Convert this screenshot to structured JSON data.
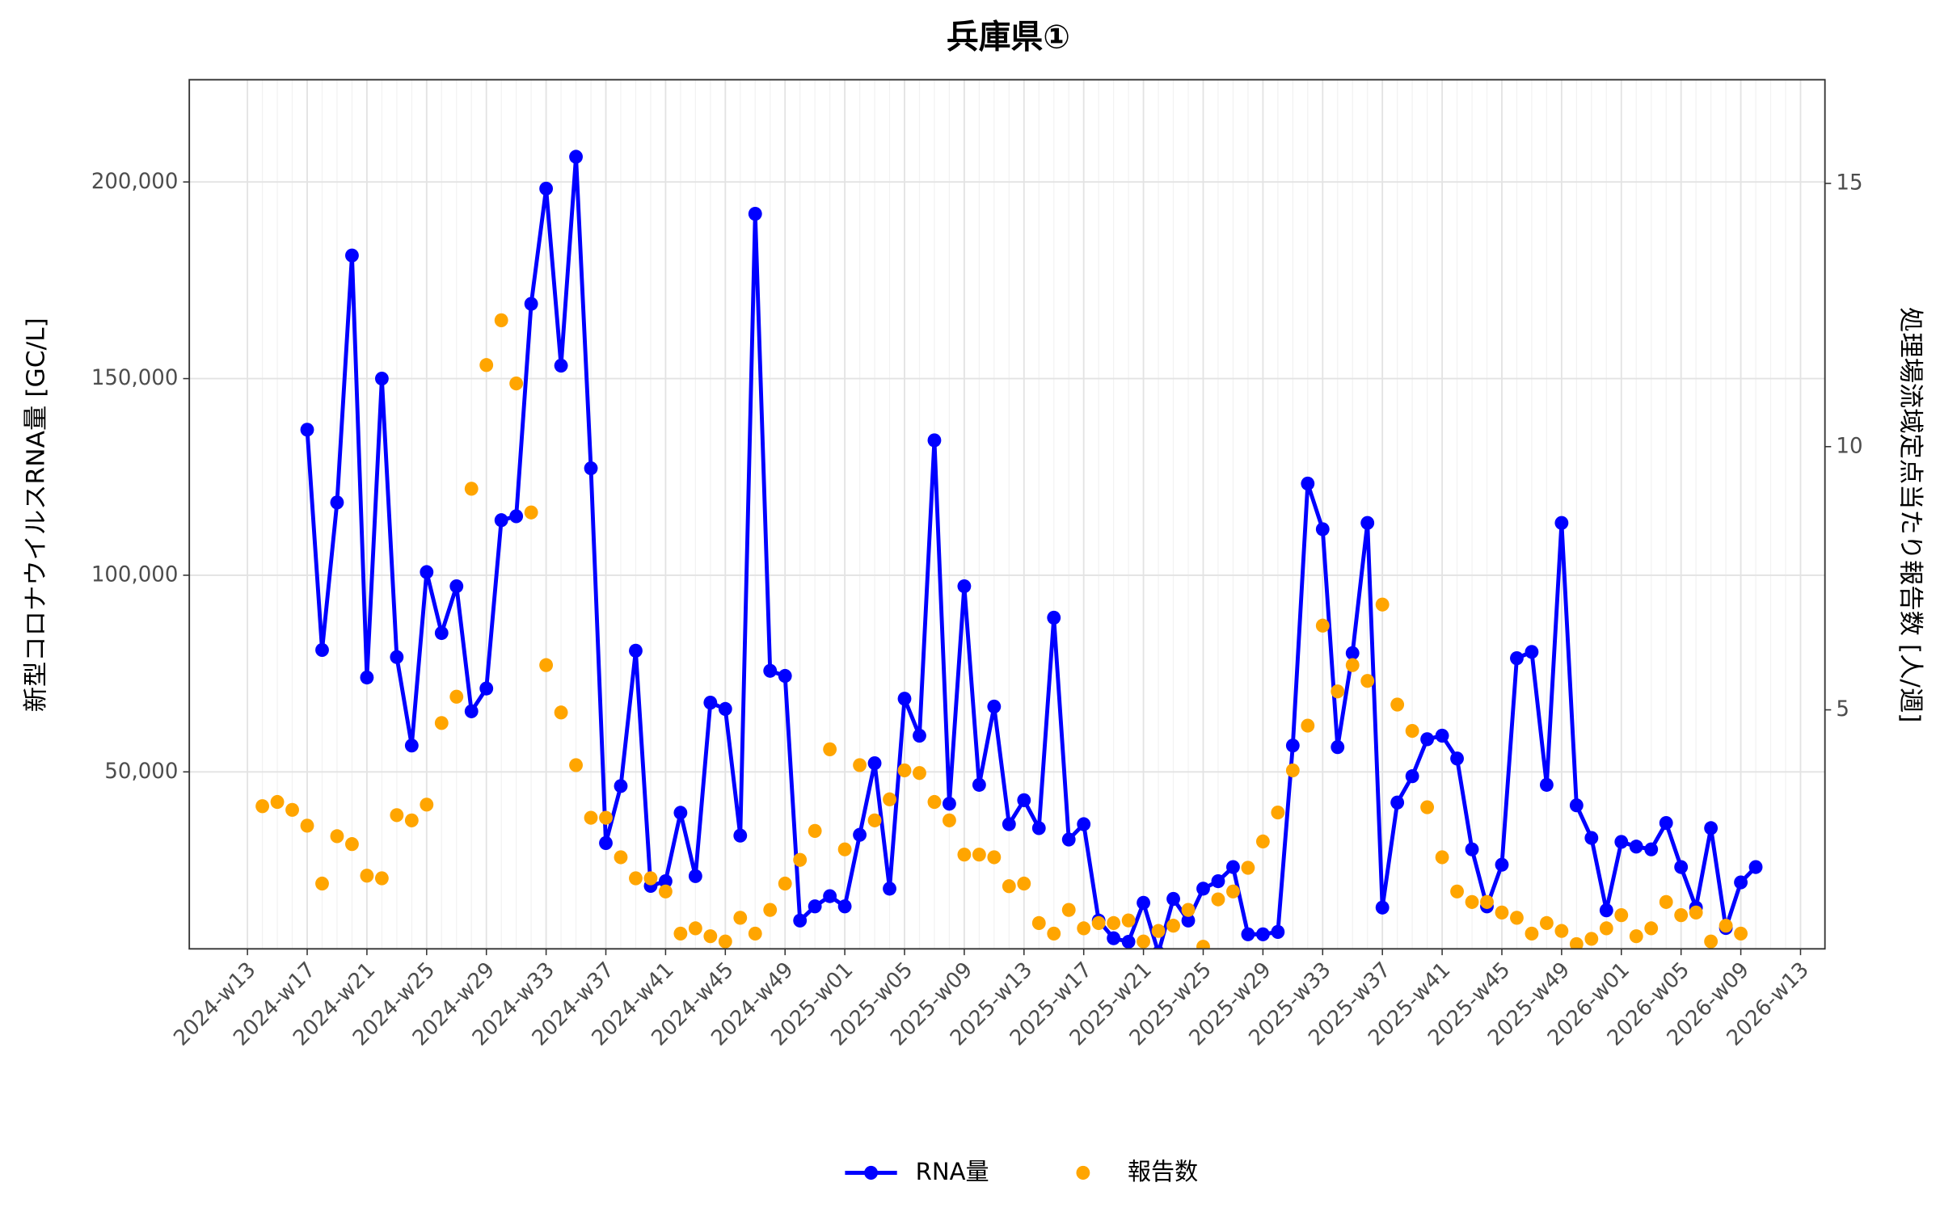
{
  "chart_data": {
    "type": "line",
    "title": "兵庫県①",
    "y_label": "新型コロナウイルスRNA量 [GC/L]",
    "y2_label": "処理場流域定点当たり報告数 [人/週]",
    "categories": [
      "2024-w13",
      null,
      null,
      null,
      "2024-w17",
      null,
      null,
      null,
      "2024-w21",
      null,
      null,
      null,
      "2024-w25",
      null,
      null,
      null,
      "2024-w29",
      null,
      null,
      null,
      "2024-w33",
      null,
      null,
      null,
      "2024-w37",
      null,
      null,
      null,
      "2024-w41",
      null,
      null,
      null,
      "2024-w45",
      null,
      null,
      null,
      "2024-w49",
      null,
      null,
      null,
      "2025-w01",
      null,
      null,
      null,
      "2025-w05",
      null,
      null,
      null,
      "2025-w09",
      null,
      null,
      null,
      "2025-w13",
      null,
      null,
      null,
      "2025-w17",
      null,
      null,
      null,
      "2025-w21",
      null,
      null,
      null,
      "2025-w25",
      null,
      null,
      null,
      "2025-w29",
      null,
      null,
      null,
      "2025-w33",
      null,
      null,
      null,
      "2025-w37",
      null,
      null,
      null,
      "2025-w41",
      null,
      null,
      null,
      "2025-w45",
      null,
      null,
      null,
      "2025-w49",
      null,
      null,
      null,
      "2026-w01",
      null,
      null,
      null,
      "2026-w05",
      null,
      null,
      null,
      "2026-w09",
      null,
      null,
      null,
      "2026-w13"
    ],
    "series": [
      {
        "name": "RNA量",
        "color": "#0000ff",
        "style": "line-points",
        "values": [
          null,
          null,
          null,
          null,
          137000,
          81000,
          118500,
          181300,
          74000,
          150000,
          79200,
          56700,
          100800,
          85300,
          97200,
          65400,
          71200,
          114000,
          115000,
          169000,
          198300,
          153300,
          206400,
          127200,
          31900,
          46400,
          80800,
          21000,
          22200,
          39600,
          23500,
          67600,
          66000,
          33800,
          191900,
          75700,
          74400,
          12200,
          15800,
          18400,
          15800,
          34000,
          52200,
          20300,
          68600,
          59200,
          134300,
          41900,
          97200,
          46700,
          66600,
          36700,
          42800,
          35700,
          89200,
          32800,
          36700,
          12200,
          7700,
          6800,
          16700,
          4000,
          17700,
          12200,
          20300,
          22200,
          25800,
          8700,
          8700,
          9300,
          56700,
          123300,
          111700,
          56300,
          80200,
          113300,
          15500,
          42200,
          48900,
          58300,
          59200,
          53400,
          30300,
          15800,
          26400,
          78900,
          80500,
          46700,
          113300,
          41500,
          33200,
          14800,
          32200,
          31000,
          30300,
          37000,
          25800,
          15500,
          35700,
          10300,
          21900,
          25800,
          null,
          null,
          null
        ]
      },
      {
        "name": "報告数",
        "color": "#ffa500",
        "style": "points",
        "axis": "y2",
        "values": [
          null,
          3.17,
          3.25,
          3.1,
          2.8,
          1.7,
          2.6,
          2.45,
          1.85,
          1.8,
          3.0,
          2.9,
          3.2,
          4.75,
          5.25,
          9.2,
          11.55,
          12.4,
          11.2,
          8.75,
          5.85,
          4.95,
          3.95,
          2.95,
          2.95,
          2.2,
          1.8,
          1.8,
          1.55,
          0.75,
          0.85,
          0.7,
          0.6,
          1.05,
          0.75,
          1.2,
          1.7,
          2.15,
          2.7,
          4.25,
          2.35,
          3.95,
          2.9,
          3.3,
          3.85,
          3.8,
          3.25,
          2.9,
          2.25,
          2.25,
          2.2,
          1.65,
          1.7,
          0.95,
          0.75,
          1.2,
          0.85,
          0.95,
          0.95,
          1.0,
          0.6,
          0.8,
          0.9,
          1.2,
          0.5,
          1.4,
          1.55,
          2.0,
          2.5,
          3.05,
          3.85,
          4.7,
          6.6,
          5.35,
          5.85,
          5.55,
          7.0,
          5.1,
          4.6,
          3.15,
          2.2,
          1.55,
          1.35,
          1.35,
          1.15,
          1.05,
          0.75,
          0.95,
          0.8,
          0.55,
          0.65,
          0.85,
          1.1,
          0.7,
          0.85,
          1.35,
          1.1,
          1.15,
          0.6,
          0.9,
          0.75,
          null,
          null,
          null,
          null
        ]
      }
    ],
    "ylim": [
      5000,
      226000
    ],
    "yticks": [
      {
        "value": 50000,
        "label": "50,000"
      },
      {
        "value": 100000,
        "label": "100,000"
      },
      {
        "value": 150000,
        "label": "150,000"
      },
      {
        "value": 200000,
        "label": "200,000"
      }
    ],
    "y2lim": [
      0.46,
      16.97
    ],
    "y2ticks": [
      5,
      10,
      15
    ],
    "grid": true,
    "legend": "bottom"
  }
}
